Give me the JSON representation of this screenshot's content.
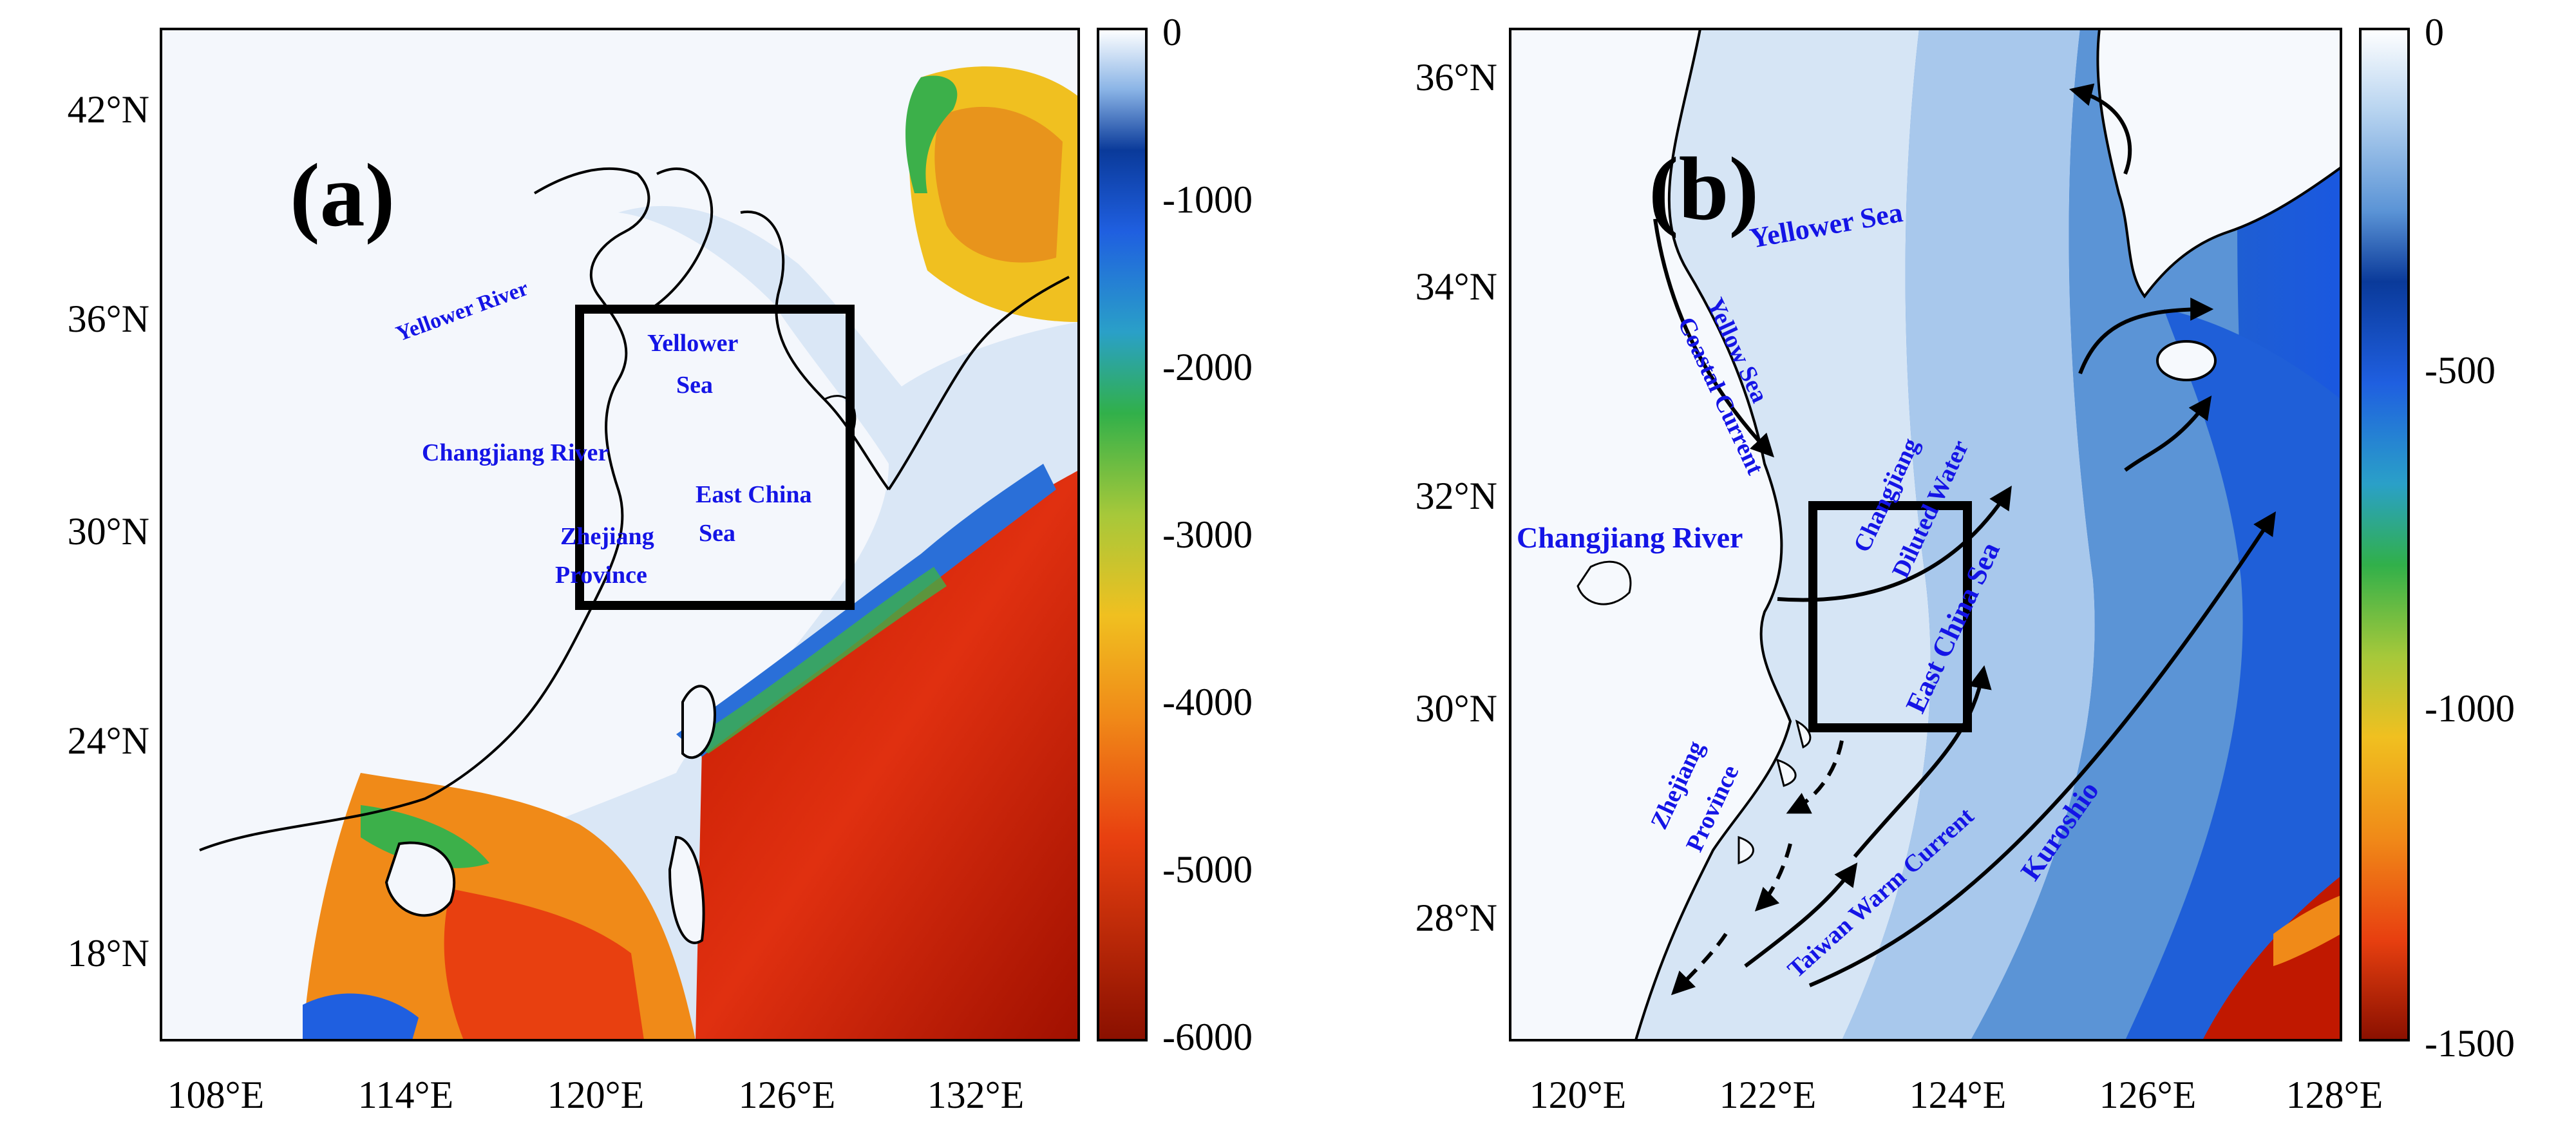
{
  "panel_a": {
    "label": "(a)",
    "x_ticks": [
      "108°E",
      "114°E",
      "120°E",
      "126°E",
      "132°E"
    ],
    "y_ticks": [
      "42°N",
      "36°N",
      "30°N",
      "24°N",
      "18°N"
    ],
    "colorbar_ticks": [
      "0",
      "-1000",
      "-2000",
      "-3000",
      "-4000",
      "-5000",
      "-6000"
    ],
    "colorbar_range": [
      -6000,
      0
    ],
    "places": {
      "yellow_river": "Yellower River",
      "yellow_sea_1": "Yellower",
      "yellow_sea_2": "Sea",
      "changjiang": "Changjiang River",
      "ecs_1": "East China",
      "ecs_2": "Sea",
      "zhejiang_1": "Zhejiang",
      "zhejiang_2": "Province"
    }
  },
  "panel_b": {
    "label": "(b)",
    "x_ticks": [
      "120°E",
      "122°E",
      "124°E",
      "126°E",
      "128°E"
    ],
    "y_ticks": [
      "36°N",
      "34°N",
      "32°N",
      "30°N",
      "28°N"
    ],
    "colorbar_ticks": [
      "0",
      "-500",
      "-1000",
      "-1500"
    ],
    "colorbar_range": [
      -1500,
      0
    ],
    "places": {
      "yellow_sea": "Yellower Sea",
      "ysc_1": "Yellow Sea",
      "ysc_2": "Coastal Current",
      "changjiang": "Changjiang River",
      "cdw_1": "Changjiang",
      "cdw_2": "Diluted Water",
      "ecs": "East China Sea",
      "zhejiang_1": "Zhejiang",
      "zhejiang_2": "Province",
      "twc": "Taiwan Warm Current",
      "kuroshio": "Kuroshio"
    }
  },
  "colors": {
    "ink": "#000000",
    "label_blue": "#1414e6",
    "land": "#f3f7fd",
    "shelf": "#dbe8f6",
    "mid_blue": "#5b94d6",
    "deep_blue": "#1f5fc4",
    "deepest": "#a01400"
  }
}
